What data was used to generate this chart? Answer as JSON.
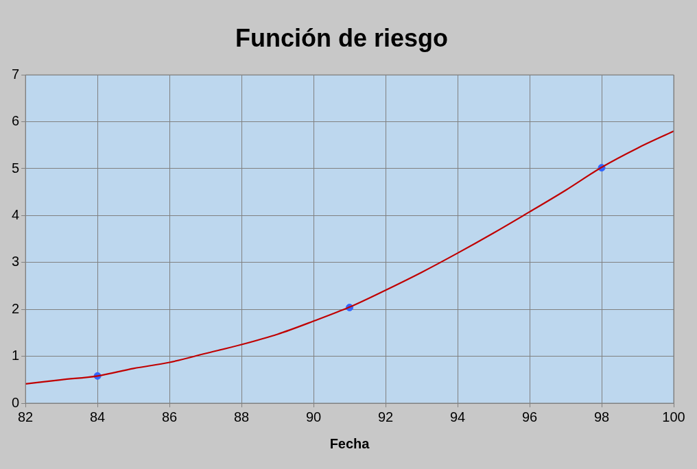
{
  "chart_data": {
    "type": "line",
    "title": "Función de riesgo",
    "xlabel": "Fecha",
    "xlim": [
      82,
      100
    ],
    "xticks": [
      82,
      84,
      86,
      88,
      90,
      92,
      94,
      96,
      98,
      100
    ],
    "ylim": [
      0,
      7
    ],
    "yticks": [
      0,
      1,
      2,
      3,
      4,
      5,
      6,
      7
    ],
    "grid": true,
    "legend": false,
    "series": [
      {
        "color": "#c00000",
        "marker": "none",
        "line_style": "solid",
        "x": [
          82,
          83,
          84,
          85,
          86,
          87,
          88,
          89,
          90,
          91,
          92,
          93,
          94,
          95,
          96,
          97,
          98,
          99,
          100
        ],
        "values": [
          0.41,
          0.5,
          0.58,
          0.74,
          0.87,
          1.06,
          1.25,
          1.47,
          1.75,
          2.05,
          2.41,
          2.79,
          3.2,
          3.63,
          4.08,
          4.54,
          5.03,
          5.44,
          5.8
        ]
      },
      {
        "type": "scatter",
        "color": "#3366ff",
        "marker": "circle",
        "x": [
          84,
          91,
          98
        ],
        "values": [
          0.58,
          2.04,
          5.02
        ]
      }
    ]
  }
}
